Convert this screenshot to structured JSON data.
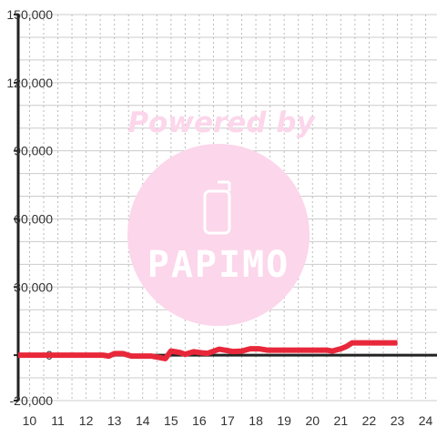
{
  "chart_data": {
    "type": "line",
    "title": "",
    "xlabel": "",
    "ylabel": "",
    "xlim": [
      9.6,
      24.4
    ],
    "ylim": [
      -20000,
      150000
    ],
    "x_ticks": [
      10,
      11,
      12,
      13,
      14,
      15,
      16,
      17,
      18,
      19,
      20,
      21,
      22,
      23,
      24
    ],
    "y_ticks": [
      -20000,
      0,
      30000,
      60000,
      90000,
      120000,
      150000
    ],
    "x_tick_labels": [
      "10",
      "11",
      "12",
      "13",
      "14",
      "15",
      "16",
      "17",
      "18",
      "19",
      "20",
      "21",
      "22",
      "23",
      "24"
    ],
    "y_tick_labels": [
      "-20,000",
      "0",
      "30,000",
      "60,000",
      "90,000",
      "120,000",
      "150,000"
    ],
    "grid": true,
    "legend": "none",
    "series": [
      {
        "color": "#e8283a",
        "points": [
          [
            9.6,
            0
          ],
          [
            12.6,
            0
          ],
          [
            12.8,
            -400
          ],
          [
            13.0,
            700
          ],
          [
            13.3,
            700
          ],
          [
            13.6,
            -400
          ],
          [
            14.3,
            -400
          ],
          [
            14.8,
            -1500
          ],
          [
            15.0,
            1800
          ],
          [
            15.3,
            1200
          ],
          [
            15.5,
            400
          ],
          [
            15.8,
            1500
          ],
          [
            16.1,
            1000
          ],
          [
            16.3,
            800
          ],
          [
            16.7,
            2600
          ],
          [
            17.2,
            1600
          ],
          [
            17.5,
            1800
          ],
          [
            17.8,
            2800
          ],
          [
            18.1,
            2800
          ],
          [
            18.4,
            2200
          ],
          [
            20.5,
            2200
          ],
          [
            20.7,
            1800
          ],
          [
            21.0,
            2800
          ],
          [
            21.2,
            3800
          ],
          [
            21.4,
            5400
          ],
          [
            23.0,
            5400
          ]
        ]
      }
    ]
  },
  "watermark": {
    "powered_text": "Powered by",
    "logo_text": "PAPIMO",
    "color": "#fcd6ea"
  }
}
